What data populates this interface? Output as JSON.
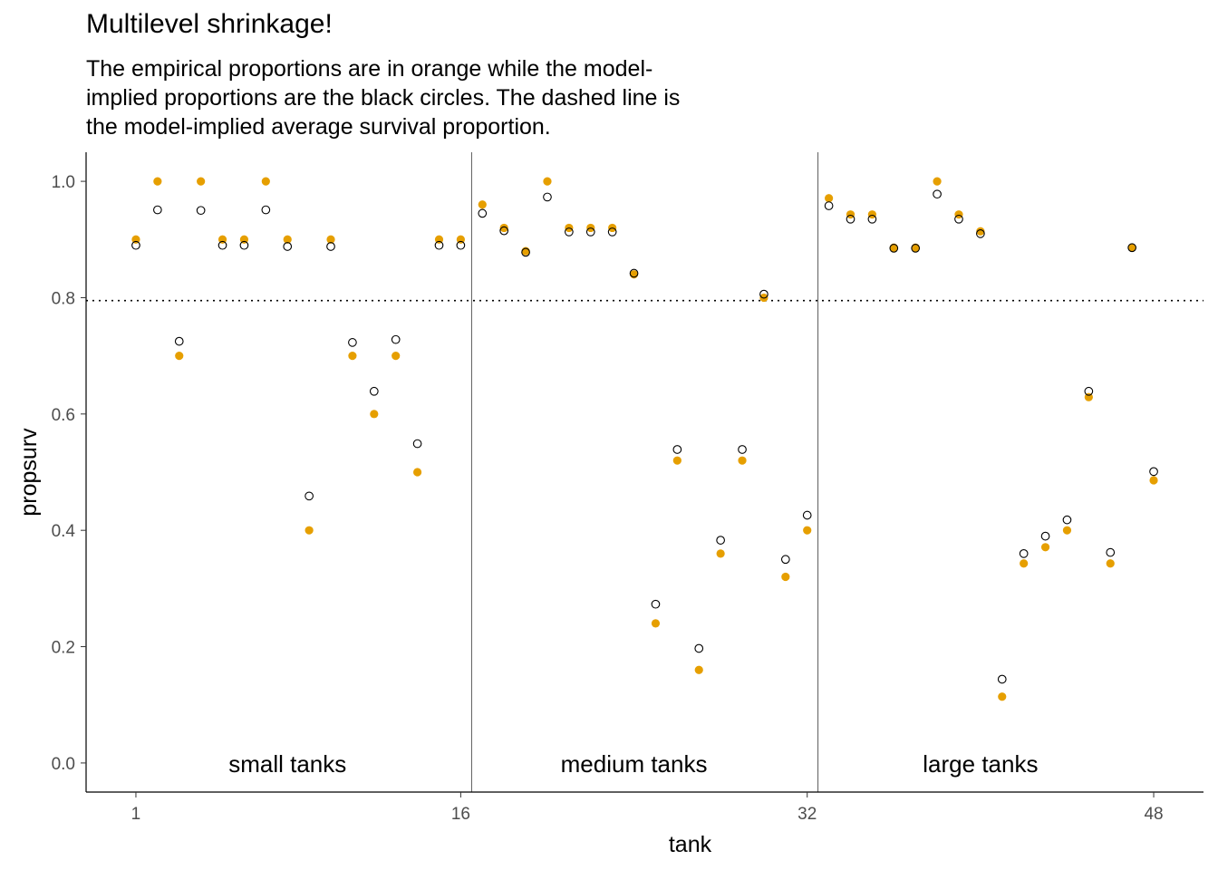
{
  "title": "Multilevel shrinkage!",
  "subtitle_lines": [
    "The empirical proportions are in orange while the model-",
    "implied proportions are the black circles. The dashed line is",
    "the model-implied average survival proportion."
  ],
  "chart_data": {
    "type": "scatter",
    "title": "Multilevel shrinkage!",
    "xlabel": "tank",
    "ylabel": "propsurv",
    "xlim": [
      -1.3,
      50.3
    ],
    "ylim": [
      -0.05,
      1.05
    ],
    "x_ticks": [
      1,
      16,
      32,
      48
    ],
    "y_ticks": [
      0.0,
      0.2,
      0.4,
      0.6,
      0.8,
      1.0
    ],
    "y_tick_labels": [
      "0.0",
      "0.2",
      "0.4",
      "0.6",
      "0.8",
      "1.0"
    ],
    "grid": false,
    "reference_line": {
      "y": 0.795,
      "style": "dotted"
    },
    "dividers": [
      16.5,
      32.5
    ],
    "panel_labels": [
      {
        "text": "small tanks",
        "x": 8
      },
      {
        "text": "medium tanks",
        "x": 24
      },
      {
        "text": "large tanks",
        "x": 40
      }
    ],
    "series": [
      {
        "role": "empirical",
        "color": "#E69F00",
        "marker": "filled-circle",
        "x": [
          1,
          2,
          3,
          4,
          5,
          6,
          7,
          8,
          9,
          10,
          11,
          12,
          13,
          14,
          15,
          16,
          17,
          18,
          19,
          20,
          21,
          22,
          23,
          24,
          25,
          26,
          27,
          28,
          29,
          30,
          31,
          32,
          33,
          34,
          35,
          36,
          37,
          38,
          39,
          40,
          41,
          42,
          43,
          44,
          45,
          46,
          47,
          48
        ],
        "values": [
          0.9,
          1.0,
          0.7,
          1.0,
          0.9,
          0.9,
          1.0,
          0.9,
          0.4,
          0.9,
          0.7,
          0.6,
          0.7,
          0.5,
          0.9,
          0.9,
          0.96,
          0.92,
          0.88,
          1.0,
          0.92,
          0.92,
          0.92,
          0.84,
          0.24,
          0.52,
          0.16,
          0.36,
          0.52,
          0.8,
          0.32,
          0.4,
          0.971,
          0.943,
          0.943,
          0.886,
          0.886,
          1.0,
          0.943,
          0.914,
          0.114,
          0.343,
          0.371,
          0.4,
          0.629,
          0.343,
          0.886,
          0.486
        ]
      },
      {
        "role": "model-implied",
        "color": "#000000",
        "marker": "open-circle",
        "x": [
          1,
          2,
          3,
          4,
          5,
          6,
          7,
          8,
          9,
          10,
          11,
          12,
          13,
          14,
          15,
          16,
          17,
          18,
          19,
          20,
          21,
          22,
          23,
          24,
          25,
          26,
          27,
          28,
          29,
          30,
          31,
          32,
          33,
          34,
          35,
          36,
          37,
          38,
          39,
          40,
          41,
          42,
          43,
          44,
          45,
          46,
          47,
          48
        ],
        "values": [
          0.89,
          0.951,
          0.725,
          0.95,
          0.89,
          0.89,
          0.951,
          0.888,
          0.459,
          0.888,
          0.723,
          0.639,
          0.728,
          0.549,
          0.89,
          0.89,
          0.945,
          0.915,
          0.878,
          0.973,
          0.913,
          0.913,
          0.913,
          0.842,
          0.273,
          0.539,
          0.197,
          0.383,
          0.539,
          0.806,
          0.35,
          0.426,
          0.958,
          0.935,
          0.935,
          0.885,
          0.885,
          0.978,
          0.935,
          0.91,
          0.144,
          0.36,
          0.39,
          0.418,
          0.639,
          0.362,
          0.886,
          0.501
        ]
      }
    ]
  }
}
